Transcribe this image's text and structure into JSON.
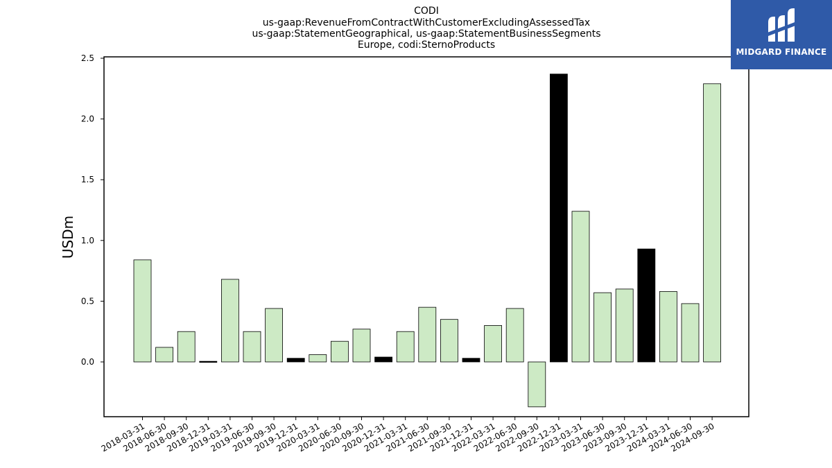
{
  "brand": {
    "name": "MIDGARD FINANCE",
    "bg": "#2f5aa8"
  },
  "chart_data": {
    "type": "bar",
    "title_lines": [
      "CODI",
      "us-gaap:RevenueFromContractWithCustomerExcludingAssessedTax",
      "us-gaap:StatementGeographical, us-gaap:StatementBusinessSegments",
      "Europe, codi:SternoProducts"
    ],
    "ylabel": "USDm",
    "xlabel": "",
    "ylim": [
      -0.45,
      2.5
    ],
    "yticks": [
      0.0,
      0.5,
      1.0,
      1.5,
      2.0,
      2.5
    ],
    "ytick_labels": [
      "0.0",
      "0.5",
      "1.0",
      "1.5",
      "2.0",
      "2.5"
    ],
    "categories": [
      "2018-03-31",
      "2018-06-30",
      "2018-09-30",
      "2018-12-31",
      "2019-03-31",
      "2019-06-30",
      "2019-09-30",
      "2019-12-31",
      "2020-03-31",
      "2020-06-30",
      "2020-09-30",
      "2020-12-31",
      "2021-03-31",
      "2021-06-30",
      "2021-09-30",
      "2021-12-31",
      "2022-03-31",
      "2022-06-30",
      "2022-09-30",
      "2022-12-31",
      "2023-03-31",
      "2023-06-30",
      "2023-09-30",
      "2023-12-31",
      "2024-03-31",
      "2024-06-30",
      "2024-09-30"
    ],
    "values": [
      0.84,
      0.12,
      0.25,
      0.005,
      0.68,
      0.25,
      0.44,
      0.03,
      0.06,
      0.17,
      0.27,
      0.04,
      0.25,
      0.45,
      0.35,
      0.03,
      0.3,
      0.44,
      -0.37,
      2.37,
      1.24,
      0.57,
      0.6,
      0.93,
      0.58,
      0.48,
      2.29
    ],
    "highlight": [
      false,
      false,
      false,
      true,
      false,
      false,
      false,
      true,
      false,
      false,
      false,
      true,
      false,
      false,
      false,
      true,
      false,
      false,
      false,
      true,
      false,
      false,
      false,
      true,
      false,
      false,
      false
    ],
    "colors": {
      "normal": "#cdeac5",
      "highlight": "#000000",
      "edge": "#000000"
    },
    "grid": false,
    "legend": "none"
  }
}
